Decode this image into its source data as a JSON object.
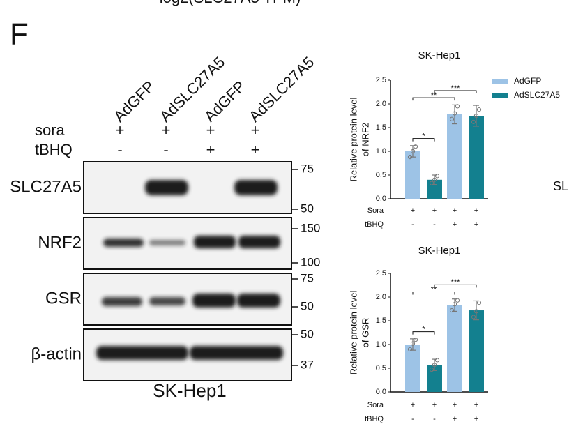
{
  "panel_label": "F",
  "clipped_top_text": "log2(SLC27A5 TPM)",
  "clipped_right_text": "SL",
  "blot": {
    "lanes": [
      "AdGFP",
      "AdSLC27A5",
      "AdGFP",
      "AdSLC27A5"
    ],
    "treatments": [
      {
        "name": "sora",
        "marks": [
          "+",
          "+",
          "+",
          "+"
        ]
      },
      {
        "name": "tBHQ",
        "marks": [
          "-",
          "-",
          "+",
          "+"
        ]
      }
    ],
    "rows": [
      {
        "protein": "SLC27A5",
        "markers": [
          "75",
          "50"
        ]
      },
      {
        "protein": "NRF2",
        "markers": [
          "150",
          "100"
        ]
      },
      {
        "protein": "GSR",
        "markers": [
          "75",
          "50"
        ]
      },
      {
        "protein": "β-actin",
        "markers": [
          "50",
          "37"
        ]
      }
    ],
    "cell_line": "SK-Hep1"
  },
  "chart_data": [
    {
      "type": "bar",
      "title": "SK-Hep1",
      "y_label": [
        "Relative protein level",
        "of NRF2"
      ],
      "condition_rows": [
        {
          "label": "Sora",
          "marks": [
            "+",
            "+",
            "+",
            "+"
          ]
        },
        {
          "label": "tBHQ",
          "marks": [
            "-",
            "-",
            "+",
            "+"
          ]
        }
      ],
      "series": [
        {
          "name": "AdGFP",
          "color": "#9dc3e6",
          "values": [
            1.0,
            null,
            1.78,
            null
          ],
          "errors": [
            0.12,
            null,
            0.2,
            null
          ],
          "points": [
            [
              0.88,
              1.0,
              1.1
            ],
            null,
            [
              1.68,
              1.8,
              1.95
            ],
            null
          ]
        },
        {
          "name": "AdSLC27A5",
          "color": "#13808f",
          "values": [
            null,
            0.4,
            null,
            1.75
          ],
          "errors": [
            null,
            0.1,
            null,
            0.22
          ],
          "points": [
            null,
            [
              0.33,
              0.4,
              0.48
            ],
            null,
            [
              1.62,
              1.75,
              1.88
            ]
          ]
        }
      ],
      "significance": [
        {
          "between": [
            0,
            1
          ],
          "label": "*"
        },
        {
          "between": [
            0,
            2
          ],
          "label": "**"
        },
        {
          "between": [
            1,
            3
          ],
          "label": "***"
        }
      ],
      "ylim": [
        0,
        2.5
      ],
      "yticks": [
        {
          "value": 0,
          "label": "0.0"
        },
        0.5,
        {
          "value": 1,
          "label": "1.0"
        },
        1.5,
        {
          "value": 2,
          "label": "2.0"
        },
        2.5
      ],
      "legend": "top-right"
    },
    {
      "type": "bar",
      "title": "SK-Hep1",
      "y_label": [
        "Relative protein level",
        "of GSR"
      ],
      "condition_rows": [
        {
          "label": "Sora",
          "marks": [
            "+",
            "+",
            "+",
            "+"
          ]
        },
        {
          "label": "tBHQ",
          "marks": [
            "-",
            "-",
            "+",
            "+"
          ]
        }
      ],
      "series": [
        {
          "name": "AdGFP",
          "color": "#9dc3e6",
          "values": [
            1.0,
            null,
            1.83,
            null
          ],
          "errors": [
            0.12,
            null,
            0.13,
            null
          ],
          "points": [
            [
              0.9,
              1.02,
              1.1
            ],
            null,
            [
              1.72,
              1.85,
              1.93
            ],
            null
          ]
        },
        {
          "name": "AdSLC27A5",
          "color": "#13808f",
          "values": [
            null,
            0.57,
            null,
            1.72
          ],
          "errors": [
            null,
            0.12,
            null,
            0.2
          ],
          "points": [
            null,
            [
              0.47,
              0.57,
              0.67
            ],
            null,
            [
              1.58,
              1.7,
              1.88
            ]
          ]
        }
      ],
      "significance": [
        {
          "between": [
            0,
            1
          ],
          "label": "*"
        },
        {
          "between": [
            0,
            2
          ],
          "label": "**"
        },
        {
          "between": [
            1,
            3
          ],
          "label": "***"
        }
      ],
      "ylim": [
        0,
        2.5
      ],
      "yticks": [
        {
          "value": 0,
          "label": "0.0"
        },
        0.5,
        {
          "value": 1,
          "label": "1.0"
        },
        1.5,
        {
          "value": 2,
          "label": "2.0"
        },
        2.5
      ]
    }
  ]
}
